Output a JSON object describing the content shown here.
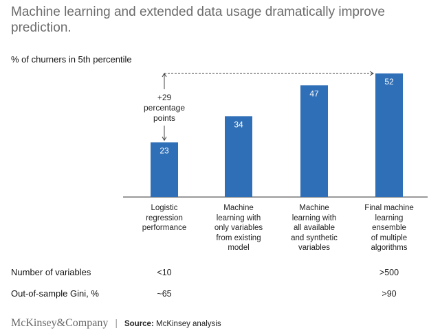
{
  "title": "Machine learning and extended data usage dramatically improve prediction.",
  "subtitle": "% of churners in 5th percentile",
  "chart_data": {
    "type": "bar",
    "categories": [
      "Logistic\nregression\nperformance",
      "Machine\nlearning with\nonly variables\nfrom existing\nmodel",
      "Machine\nlearning with\nall available\nand synthetic\nvariables",
      "Final machine\nlearning\nensemble\nof multiple\nalgorithms"
    ],
    "values": [
      23,
      34,
      47,
      52
    ],
    "ylim": [
      0,
      52
    ],
    "bar_color": "#2f6fb7",
    "annotation": {
      "text": "+29\npercentage\npoints",
      "from_category": 0,
      "to_category": 3
    },
    "grid": false
  },
  "rows": [
    {
      "label": "Number of variables",
      "values": [
        "<10",
        "",
        "",
        ">500"
      ]
    },
    {
      "label": "Out-of-sample Gini, %",
      "values": [
        "~65",
        "",
        "",
        ">90"
      ]
    }
  ],
  "footer": {
    "logo": "McKinsey&Company",
    "separator": "|",
    "source_label": "Source:",
    "source_text": " McKinsey analysis"
  }
}
